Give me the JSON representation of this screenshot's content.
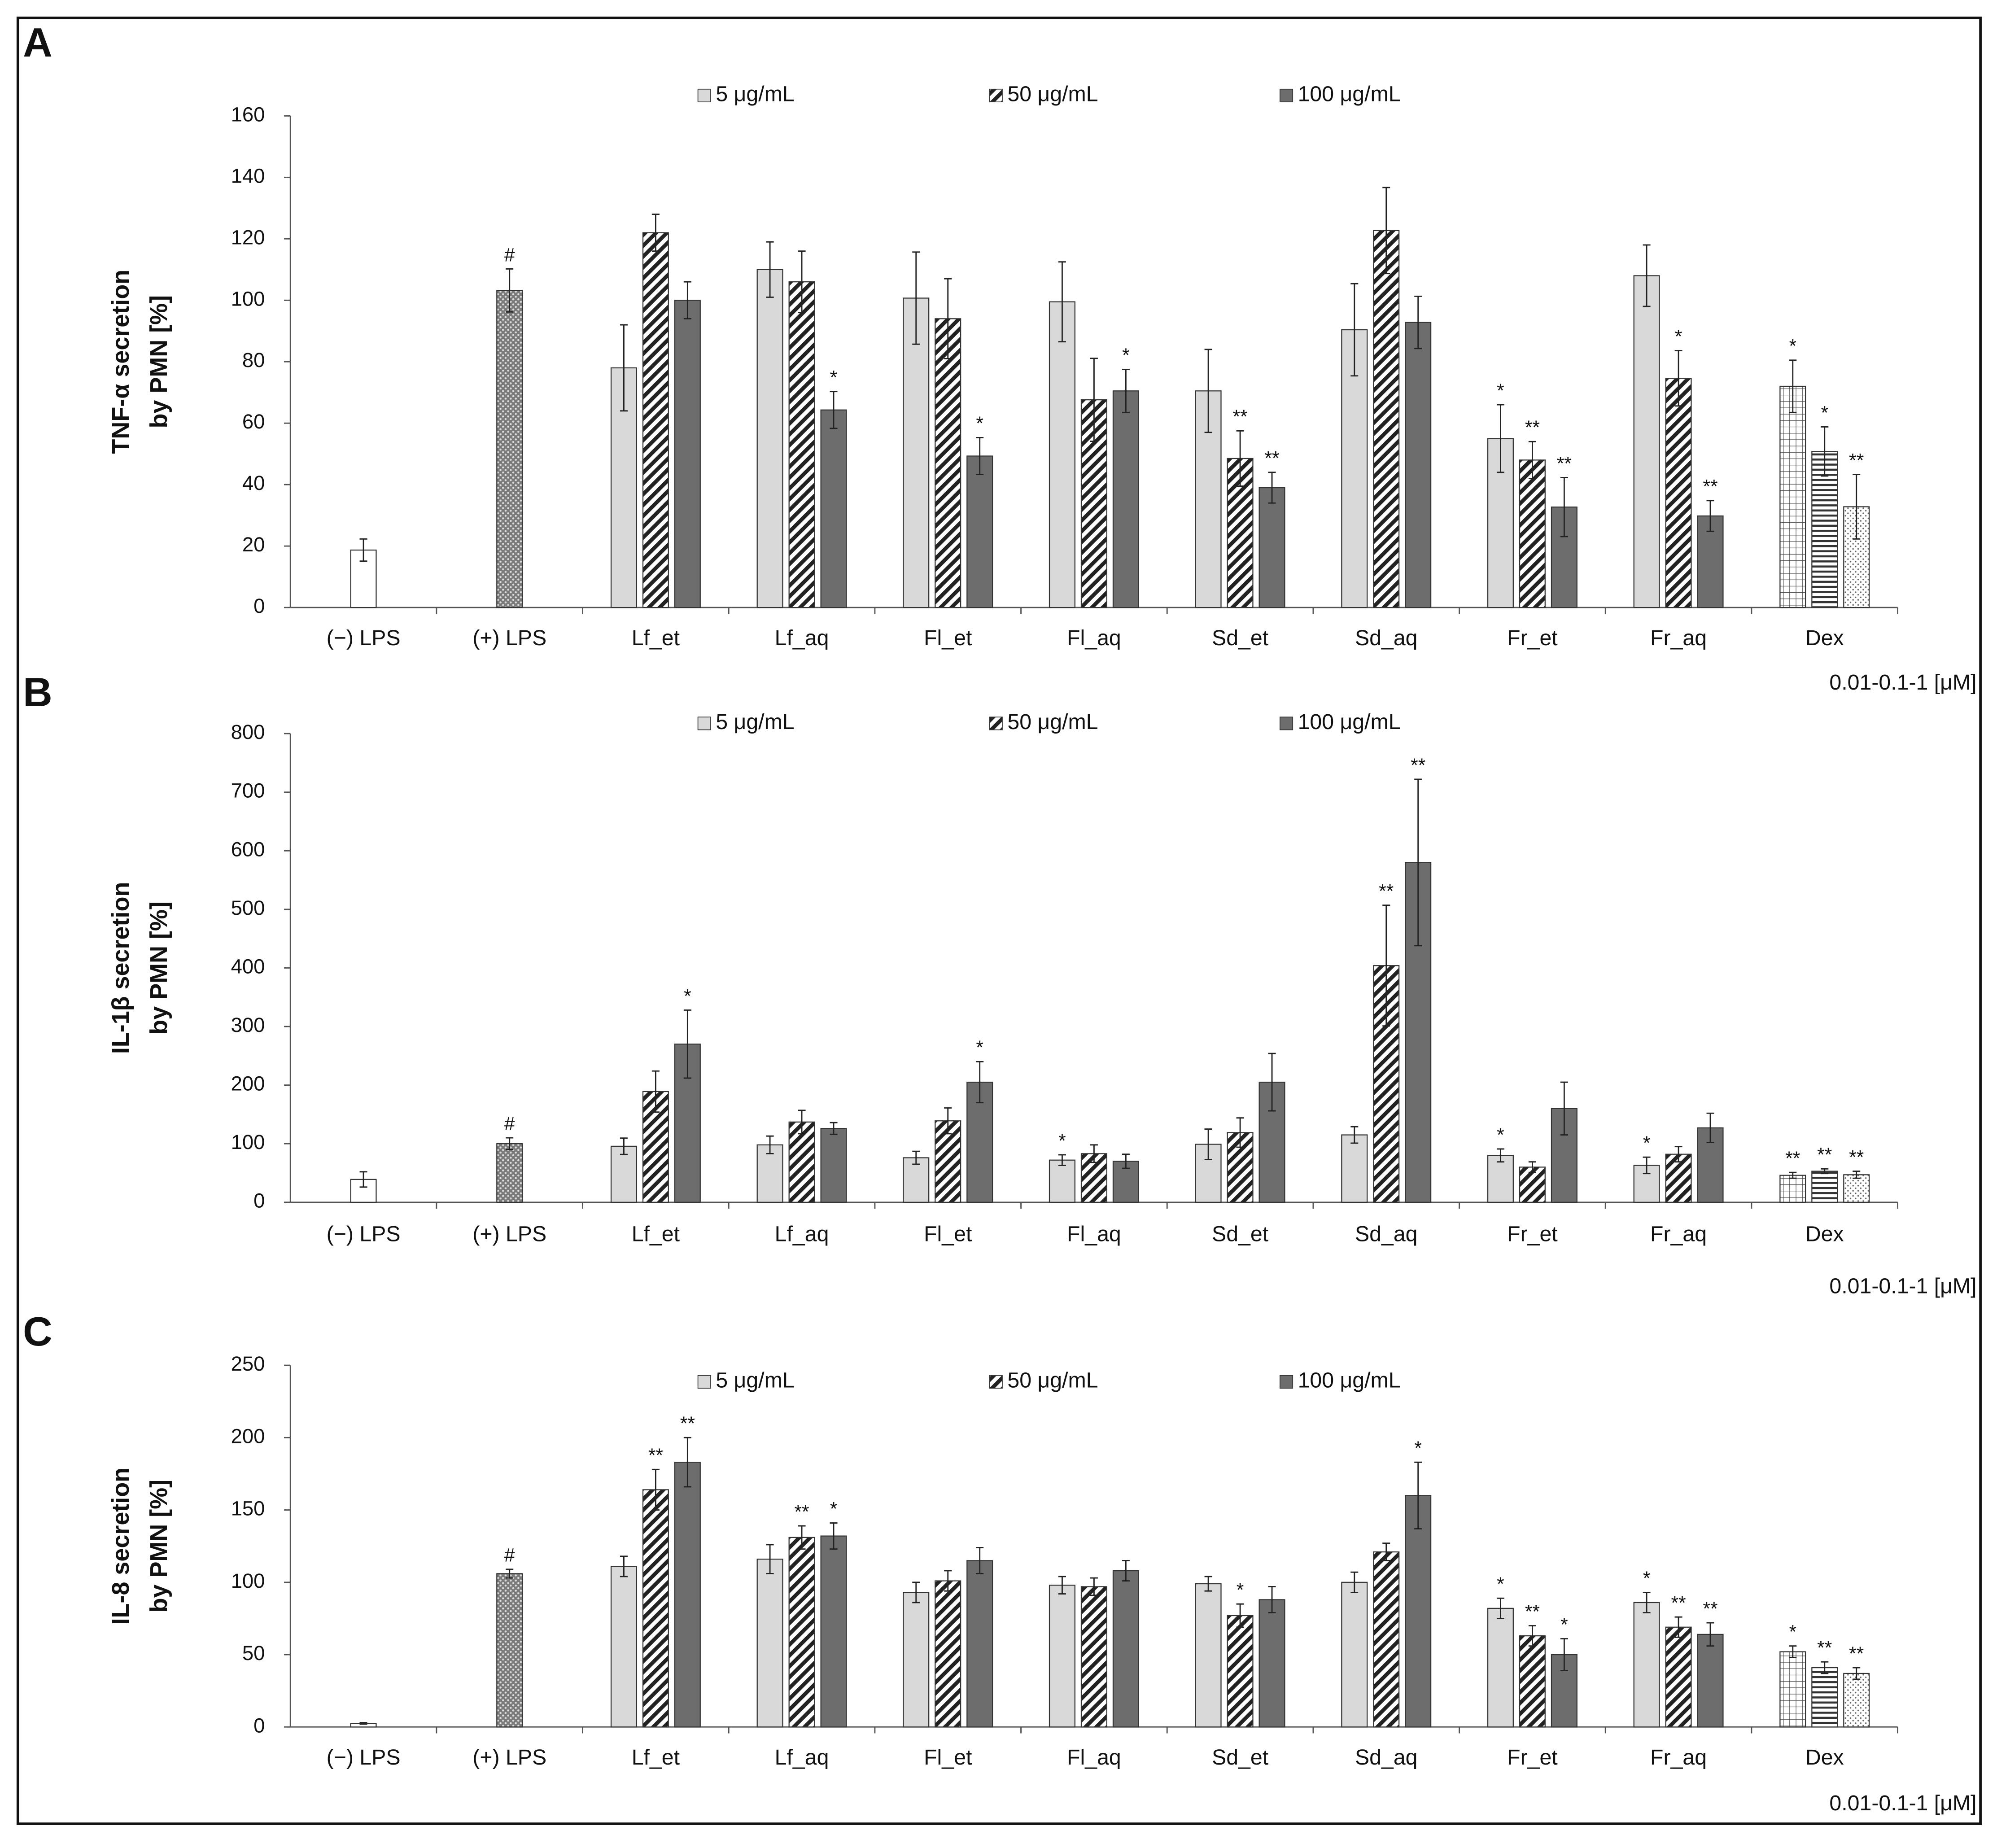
{
  "chart_data": [
    {
      "type": "bar",
      "panel": "A",
      "y_label": [
        "TNF-α secretion",
        "by PMN [%]"
      ],
      "note": "0.01-0.1-1 [μM]",
      "categories": [
        "(−) LPS",
        "(+) LPS",
        "Lf_et",
        "Lf_aq",
        "Fl_et",
        "Fl_aq",
        "Sd_et",
        "Sd_aq",
        "Fr_et",
        "Fr_aq",
        "Dex"
      ],
      "ylim": [
        0,
        160
      ],
      "yticks": [
        0,
        20,
        40,
        60,
        80,
        100,
        120,
        140,
        160
      ],
      "series": [
        {
          "name": "5 μg/mL",
          "color": "#d9d9d9",
          "pattern": "solid",
          "values": [
            null,
            null,
            78,
            110,
            100.7,
            99.5,
            70.5,
            90.4,
            55,
            108,
            null
          ],
          "errors": [
            null,
            null,
            14,
            9,
            15,
            13,
            13.5,
            15,
            11,
            10,
            null
          ],
          "annotations": [
            null,
            null,
            null,
            null,
            null,
            null,
            null,
            null,
            "*",
            null,
            null
          ]
        },
        {
          "name": "50 μg/mL",
          "color": "#222222",
          "pattern": "hatch",
          "values": [
            null,
            null,
            122,
            106,
            94,
            67.6,
            48.5,
            122.7,
            48,
            74.6,
            null
          ],
          "errors": [
            null,
            null,
            6,
            10,
            13,
            13.5,
            9,
            14,
            6,
            9,
            null
          ],
          "annotations": [
            null,
            null,
            null,
            null,
            null,
            null,
            "**",
            null,
            "**",
            "*",
            null
          ]
        },
        {
          "name": "100 μg/mL",
          "color": "#6d6d6d",
          "pattern": "solid",
          "values": [
            null,
            null,
            100,
            64.3,
            49.3,
            70.5,
            39,
            92.8,
            32.7,
            29.8,
            null
          ],
          "errors": [
            null,
            null,
            6,
            6,
            6,
            7,
            5,
            8.5,
            9.6,
            5,
            null
          ],
          "annotations": [
            null,
            null,
            null,
            "*",
            "*",
            "*",
            "**",
            null,
            "**",
            "**",
            null
          ]
        }
      ],
      "controls": {
        "values": [
          18.7,
          103.2
        ],
        "errors": [
          3.6,
          7
        ],
        "annotations": [
          null,
          "#"
        ],
        "patterns": [
          "none",
          "dots"
        ]
      },
      "dex": {
        "values": [
          72,
          50.8,
          32.8
        ],
        "errors": [
          8.5,
          8,
          10.5
        ],
        "annotations": [
          "*",
          "*",
          "**"
        ],
        "patterns": [
          "grid",
          "hlines",
          "lightdots"
        ]
      }
    },
    {
      "type": "bar",
      "panel": "B",
      "y_label": [
        "IL-1β secretion",
        "by PMN [%]"
      ],
      "note": "0.01-0.1-1 [μM]",
      "categories": [
        "(−) LPS",
        "(+) LPS",
        "Lf_et",
        "Lf_aq",
        "Fl_et",
        "Fl_aq",
        "Sd_et",
        "Sd_aq",
        "Fr_et",
        "Fr_aq",
        "Dex"
      ],
      "ylim": [
        0,
        800
      ],
      "yticks": [
        0,
        100,
        200,
        300,
        400,
        500,
        600,
        700,
        800
      ],
      "series": [
        {
          "name": "5 μg/mL",
          "color": "#d9d9d9",
          "pattern": "solid",
          "values": [
            null,
            null,
            95.6,
            98,
            76,
            72,
            99,
            115,
            80,
            63,
            null
          ],
          "errors": [
            null,
            null,
            14,
            15,
            11,
            9,
            26,
            14,
            11,
            14,
            null
          ],
          "annotations": [
            null,
            null,
            null,
            null,
            null,
            "*",
            null,
            null,
            "*",
            "*",
            null
          ]
        },
        {
          "name": "50 μg/mL",
          "color": "#222222",
          "pattern": "hatch",
          "values": [
            null,
            null,
            189,
            137,
            139,
            83,
            119,
            404,
            60,
            82,
            null
          ],
          "errors": [
            null,
            null,
            35,
            20,
            22,
            15,
            25,
            103,
            9,
            13,
            null
          ],
          "annotations": [
            null,
            null,
            null,
            null,
            null,
            null,
            null,
            "**",
            null,
            null,
            null
          ]
        },
        {
          "name": "100 μg/mL",
          "color": "#6d6d6d",
          "pattern": "solid",
          "values": [
            null,
            null,
            270,
            126,
            205,
            70,
            205,
            580,
            160,
            127,
            null
          ],
          "errors": [
            null,
            null,
            58,
            10,
            35,
            12,
            49,
            142,
            45,
            25,
            null
          ],
          "annotations": [
            null,
            null,
            "*",
            null,
            "*",
            null,
            null,
            "**",
            null,
            null,
            null
          ]
        }
      ],
      "controls": {
        "values": [
          39,
          100
        ],
        "errors": [
          13,
          10
        ],
        "annotations": [
          null,
          "#"
        ],
        "patterns": [
          "none",
          "dots"
        ]
      },
      "dex": {
        "values": [
          46,
          53,
          47
        ],
        "errors": [
          5,
          4,
          6
        ],
        "annotations": [
          "**",
          "**",
          "**"
        ],
        "patterns": [
          "grid",
          "hlines",
          "lightdots"
        ]
      }
    },
    {
      "type": "bar",
      "panel": "C",
      "y_label": [
        "IL-8 secretion",
        "by PMN [%]"
      ],
      "note": "0.01-0.1-1 [μM]",
      "categories": [
        "(−) LPS",
        "(+) LPS",
        "Lf_et",
        "Lf_aq",
        "Fl_et",
        "Fl_aq",
        "Sd_et",
        "Sd_aq",
        "Fr_et",
        "Fr_aq",
        "Dex"
      ],
      "ylim": [
        0,
        250
      ],
      "yticks": [
        0,
        50,
        100,
        150,
        200,
        250
      ],
      "series": [
        {
          "name": "5 μg/mL",
          "color": "#d9d9d9",
          "pattern": "solid",
          "values": [
            null,
            null,
            111,
            116,
            93,
            98,
            99,
            100,
            82,
            86,
            null
          ],
          "errors": [
            null,
            null,
            7,
            10,
            7,
            6,
            5,
            7,
            7,
            7,
            null
          ],
          "annotations": [
            null,
            null,
            null,
            null,
            null,
            null,
            null,
            null,
            "*",
            "*",
            null
          ]
        },
        {
          "name": "50 μg/mL",
          "color": "#222222",
          "pattern": "hatch",
          "values": [
            null,
            null,
            164,
            131,
            101,
            97,
            77,
            121,
            63,
            69,
            null
          ],
          "errors": [
            null,
            null,
            14,
            8,
            7,
            6,
            8,
            6,
            7,
            7,
            null
          ],
          "annotations": [
            null,
            null,
            "**",
            "**",
            null,
            null,
            "*",
            null,
            "**",
            "**",
            null
          ]
        },
        {
          "name": "100 μg/mL",
          "color": "#6d6d6d",
          "pattern": "solid",
          "values": [
            null,
            null,
            183,
            132,
            115,
            108,
            88,
            160,
            50,
            64,
            null
          ],
          "errors": [
            null,
            null,
            17,
            9,
            9,
            7,
            9,
            23,
            11,
            8,
            null
          ],
          "annotations": [
            null,
            null,
            "**",
            "*",
            null,
            null,
            null,
            "*",
            "*",
            "**",
            null
          ]
        }
      ],
      "controls": {
        "values": [
          2.5,
          106
        ],
        "errors": [
          0.5,
          3
        ],
        "annotations": [
          null,
          "#"
        ],
        "patterns": [
          "none",
          "dots"
        ]
      },
      "dex": {
        "values": [
          52,
          41,
          37
        ],
        "errors": [
          4,
          4,
          4
        ],
        "annotations": [
          "*",
          "**",
          "**"
        ],
        "patterns": [
          "grid",
          "hlines",
          "lightdots"
        ]
      }
    }
  ]
}
